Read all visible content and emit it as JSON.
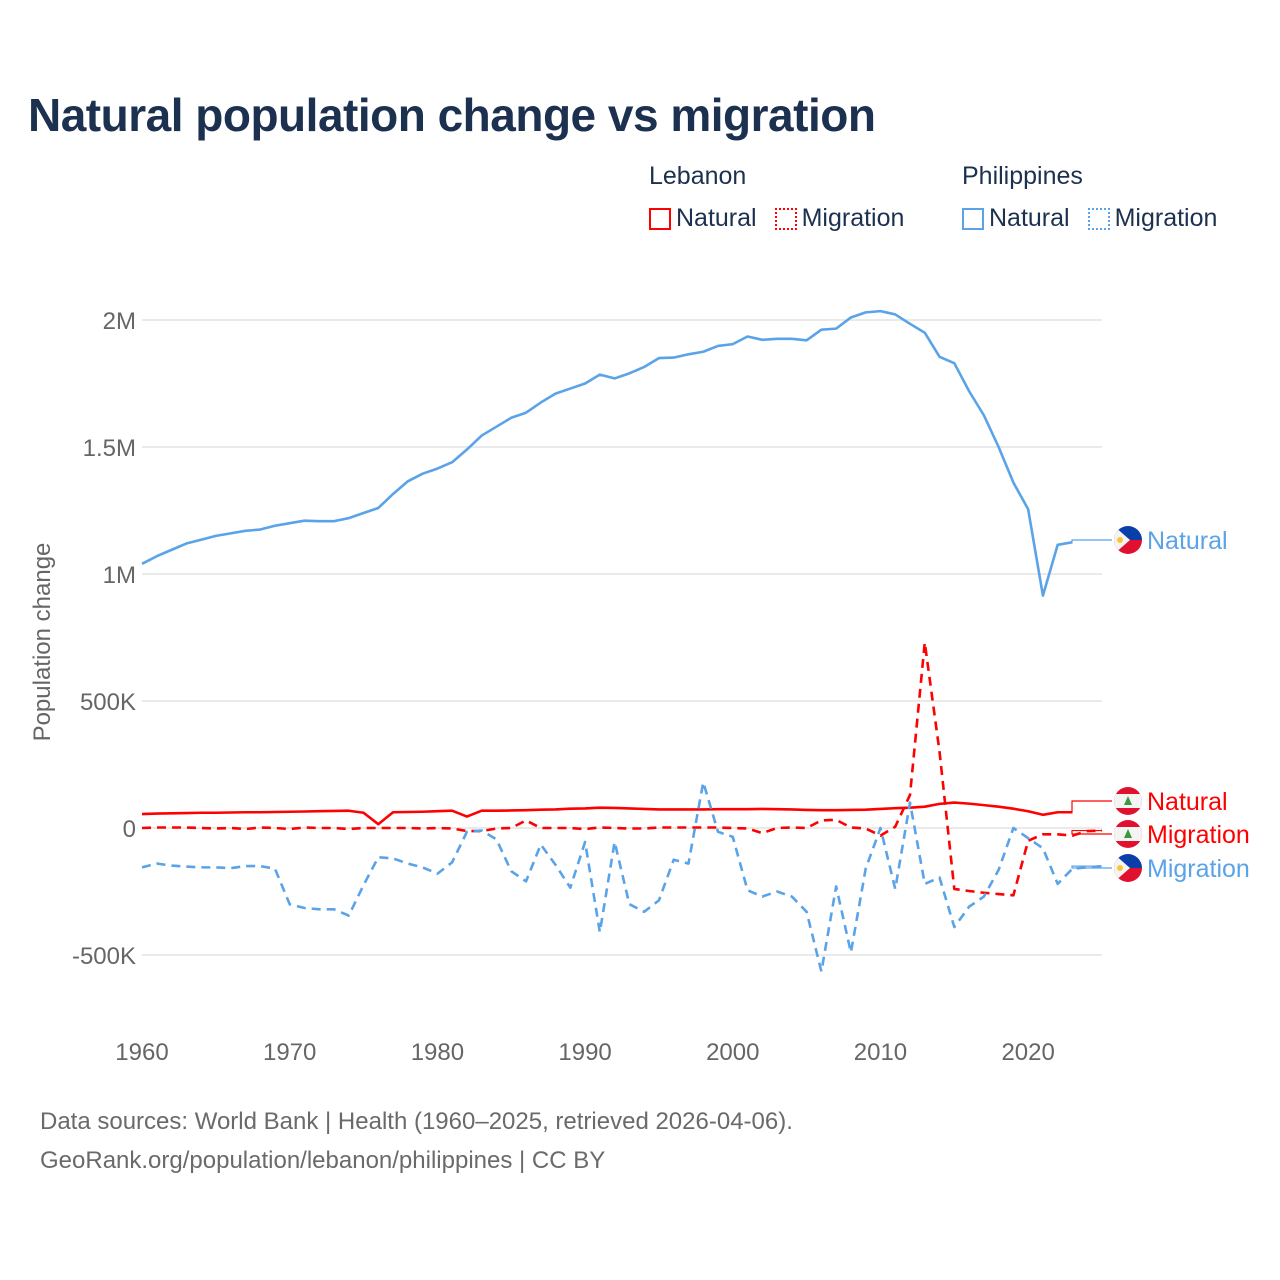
{
  "chart_data": {
    "type": "line",
    "title": "Natural population change vs migration",
    "xlabel": "",
    "ylabel": "Population change",
    "xlim": [
      1960,
      2025
    ],
    "ylim": [
      -600000,
      2100000
    ],
    "grid": true,
    "x_ticks": [
      1960,
      1970,
      1980,
      1990,
      2000,
      2010,
      2020
    ],
    "x_tick_labels": [
      "1960",
      "1970",
      "1980",
      "1990",
      "2000",
      "2010",
      "2020"
    ],
    "y_ticks": [
      -500000,
      0,
      500000,
      1000000,
      1500000,
      2000000
    ],
    "y_tick_labels": [
      "-500K",
      "0",
      "500K",
      "1M",
      "1.5M",
      "2M"
    ],
    "legend": {
      "placement": "top-right",
      "groups": [
        {
          "name": "Lebanon",
          "items": [
            "Natural",
            "Migration"
          ]
        },
        {
          "name": "Philippines",
          "items": [
            "Natural",
            "Migration"
          ]
        }
      ]
    },
    "series": [
      {
        "name": "Philippines Natural",
        "country": "Philippines",
        "kind": "Natural",
        "label": "Natural",
        "color": "#5aa3e8",
        "dash": false,
        "flag": "philippines",
        "x_start": 1960,
        "values": [
          1040000,
          1070000,
          1095000,
          1120000,
          1135000,
          1150000,
          1160000,
          1170000,
          1175000,
          1190000,
          1200000,
          1210000,
          1208000,
          1208000,
          1220000,
          1240000,
          1260000,
          1315000,
          1365000,
          1395000,
          1415000,
          1440000,
          1490000,
          1545000,
          1580000,
          1615000,
          1635000,
          1675000,
          1710000,
          1730000,
          1750000,
          1785000,
          1770000,
          1790000,
          1815000,
          1850000,
          1852000,
          1865000,
          1875000,
          1898000,
          1905000,
          1935000,
          1922000,
          1926000,
          1926000,
          1920000,
          1962000,
          1966000,
          2010000,
          2030000,
          2035000,
          2022000,
          1985000,
          1950000,
          1855000,
          1830000,
          1720000,
          1625000,
          1500000,
          1360000,
          1255000,
          915000,
          1115000,
          1125000
        ]
      },
      {
        "name": "Lebanon Natural",
        "country": "Lebanon",
        "kind": "Natural",
        "label": "Natural",
        "color": "#ff0000",
        "dash": false,
        "flag": "lebanon",
        "x_start": 1960,
        "values": [
          55000,
          57000,
          58000,
          59000,
          60000,
          60000,
          61000,
          62000,
          62000,
          63000,
          64000,
          65000,
          66000,
          67000,
          68000,
          60000,
          15000,
          62000,
          63000,
          64000,
          66000,
          68000,
          45000,
          68000,
          68000,
          69000,
          70000,
          72000,
          73000,
          76000,
          77000,
          80000,
          79000,
          77000,
          75000,
          73000,
          73000,
          73000,
          73000,
          74000,
          74000,
          74000,
          75000,
          74000,
          73000,
          71000,
          70000,
          70000,
          71000,
          72000,
          75000,
          78000,
          80000,
          84000,
          95000,
          100000,
          96000,
          90000,
          84000,
          76000,
          66000,
          52000,
          62000,
          62000
        ]
      },
      {
        "name": "Lebanon Migration",
        "country": "Lebanon",
        "kind": "Migration",
        "label": "Migration",
        "color": "#ff0000",
        "dash": true,
        "flag": "lebanon",
        "x_start": 1960,
        "values": [
          0,
          2000,
          2000,
          2000,
          0,
          -2000,
          0,
          -4000,
          2000,
          0,
          -4000,
          2000,
          0,
          0,
          -4000,
          0,
          0,
          0,
          0,
          -2000,
          0,
          -2000,
          -12000,
          -12000,
          -2000,
          0,
          30000,
          0,
          0,
          0,
          -4000,
          2000,
          0,
          -2000,
          -2000,
          2000,
          2000,
          2000,
          2000,
          2000,
          0,
          -2000,
          -20000,
          0,
          2000,
          0,
          30000,
          32000,
          2000,
          -2000,
          -30000,
          5000,
          130000,
          730000,
          300000,
          -240000,
          -248000,
          -255000,
          -260000,
          -265000,
          -50000,
          -25000,
          -25000,
          -30000,
          -12000,
          -10000
        ]
      },
      {
        "name": "Philippines Migration",
        "country": "Philippines",
        "kind": "Migration",
        "label": "Migration",
        "color": "#5aa3e8",
        "dash": true,
        "flag": "philippines",
        "x_start": 1960,
        "values": [
          -155000,
          -140000,
          -148000,
          -152000,
          -155000,
          -155000,
          -158000,
          -150000,
          -150000,
          -160000,
          -300000,
          -315000,
          -320000,
          -320000,
          -345000,
          -225000,
          -115000,
          -120000,
          -140000,
          -155000,
          -180000,
          -135000,
          -15000,
          -10000,
          -45000,
          -170000,
          -210000,
          -65000,
          -145000,
          -235000,
          -55000,
          -410000,
          -55000,
          -300000,
          -330000,
          -285000,
          -125000,
          -140000,
          180000,
          -15000,
          -35000,
          -245000,
          -270000,
          -250000,
          -270000,
          -330000,
          -565000,
          -230000,
          -490000,
          -160000,
          0,
          -240000,
          100000,
          -220000,
          -195000,
          -390000,
          -310000,
          -270000,
          -165000,
          0,
          -40000,
          -80000,
          -220000,
          -160000,
          -155000,
          -150000
        ]
      }
    ]
  },
  "legend_headings": {
    "lebanon": "Lebanon",
    "philippines": "Philippines"
  },
  "legend_labels": {
    "lb_natural": "Natural",
    "lb_migration": "Migration",
    "ph_natural": "Natural",
    "ph_migration": "Migration"
  },
  "colors": {
    "lebanon": "#ff0000",
    "philippines": "#5aa3e8",
    "title": "#1c3050"
  },
  "footer": {
    "line1": "Data sources: World Bank | Health (1960–2025, retrieved 2026-04-06).",
    "line2": "GeoRank.org/population/lebanon/philippines | CC BY"
  }
}
